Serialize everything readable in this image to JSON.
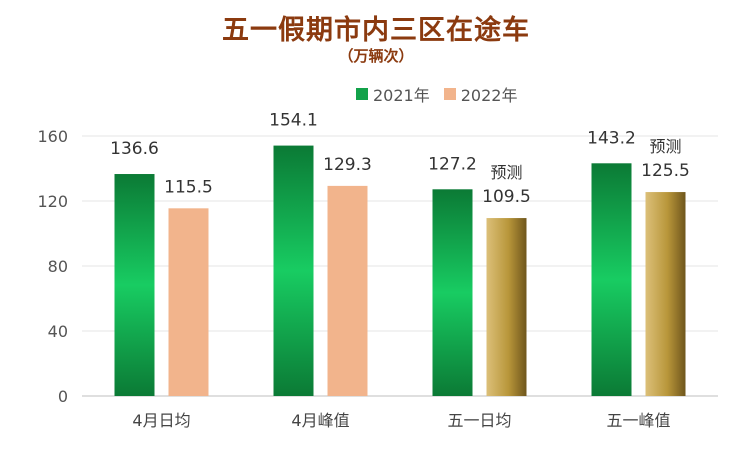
{
  "chart_data": {
    "type": "bar",
    "title": "五一假期市内三区在途车",
    "subtitle": "（万辆次）",
    "categories": [
      "4月日均",
      "4月峰值",
      "五一日均",
      "五一峰值"
    ],
    "series": [
      {
        "name": "2021年",
        "values": [
          136.6,
          154.1,
          127.2,
          143.2
        ],
        "color": "#12a24a"
      },
      {
        "name": "2022年",
        "values": [
          115.5,
          129.3,
          109.5,
          125.5
        ],
        "color": "#f2b48c"
      }
    ],
    "forecast_color": "#b8963a",
    "forecast": [
      false,
      false,
      true,
      true
    ],
    "forecast_note": "预测",
    "ylim": [
      0,
      160
    ],
    "yticks": [
      0,
      40,
      80,
      120,
      160
    ],
    "grid": true,
    "legend_position": "top-center",
    "xlabel": "",
    "ylabel": ""
  }
}
